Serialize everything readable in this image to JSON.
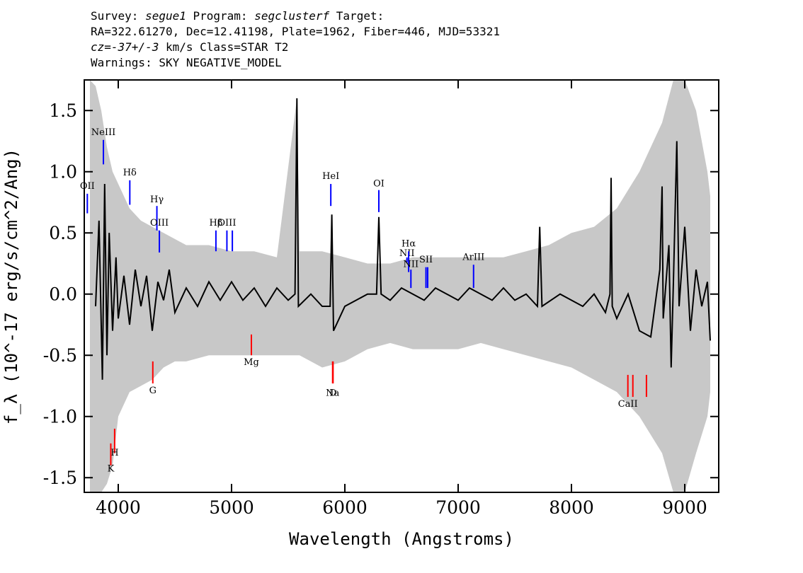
{
  "header": {
    "line1": {
      "survey_label": "Survey: ",
      "survey": "segue1",
      "program_label": " Program: ",
      "program": "segclusterf",
      "target_label": " Target:"
    },
    "line2": "RA=322.61270, Dec=12.41198, Plate=1962, Fiber=446, MJD=53321",
    "line3": {
      "cz": "cz=-37+/-3",
      "rest": " km/s Class=STAR T2"
    },
    "line4": "Warnings: SKY NEGATIVE_MODEL"
  },
  "chart_data": {
    "type": "line",
    "xlabel": "Wavelength (Angstroms)",
    "ylabel": "f_λ (10^-17 erg/s/cm^2/Ang)",
    "xlim": [
      3700,
      9300
    ],
    "ylim": [
      -1.62,
      1.75
    ],
    "x_ticks": [
      4000,
      5000,
      6000,
      7000,
      8000,
      9000
    ],
    "x_tick_labels": [
      "4000",
      "5000",
      "6000",
      "7000",
      "8000",
      "9000"
    ],
    "y_ticks": [
      -1.5,
      -1.0,
      -0.5,
      0.0,
      0.5,
      1.0,
      1.5
    ],
    "y_tick_labels": [
      "-1.5",
      "-1.0",
      "-0.5",
      "0.0",
      "0.5",
      "1.0",
      "1.5"
    ],
    "series": [
      {
        "style": "black-line",
        "points": [
          [
            3800,
            -0.1
          ],
          [
            3830,
            0.6
          ],
          [
            3860,
            -0.7
          ],
          [
            3880,
            0.9
          ],
          [
            3900,
            -0.5
          ],
          [
            3920,
            0.5
          ],
          [
            3950,
            -0.3
          ],
          [
            3980,
            0.3
          ],
          [
            4000,
            -0.2
          ],
          [
            4050,
            0.15
          ],
          [
            4100,
            -0.25
          ],
          [
            4150,
            0.2
          ],
          [
            4200,
            -0.1
          ],
          [
            4250,
            0.15
          ],
          [
            4300,
            -0.3
          ],
          [
            4350,
            0.1
          ],
          [
            4400,
            -0.05
          ],
          [
            4450,
            0.2
          ],
          [
            4500,
            -0.15
          ],
          [
            4600,
            0.05
          ],
          [
            4700,
            -0.1
          ],
          [
            4800,
            0.1
          ],
          [
            4900,
            -0.05
          ],
          [
            5000,
            0.1
          ],
          [
            5100,
            -0.05
          ],
          [
            5200,
            0.05
          ],
          [
            5300,
            -0.1
          ],
          [
            5400,
            0.05
          ],
          [
            5500,
            -0.05
          ],
          [
            5560,
            0.0
          ],
          [
            5577,
            1.6
          ],
          [
            5590,
            -0.1
          ],
          [
            5700,
            0.0
          ],
          [
            5800,
            -0.1
          ],
          [
            5870,
            -0.1
          ],
          [
            5885,
            0.65
          ],
          [
            5900,
            -0.3
          ],
          [
            6000,
            -0.1
          ],
          [
            6100,
            -0.05
          ],
          [
            6200,
            0.0
          ],
          [
            6280,
            0.0
          ],
          [
            6300,
            0.63
          ],
          [
            6320,
            0.0
          ],
          [
            6400,
            -0.05
          ],
          [
            6500,
            0.05
          ],
          [
            6600,
            0.0
          ],
          [
            6700,
            -0.05
          ],
          [
            6800,
            0.05
          ],
          [
            6900,
            0.0
          ],
          [
            7000,
            -0.05
          ],
          [
            7100,
            0.05
          ],
          [
            7200,
            0.0
          ],
          [
            7300,
            -0.05
          ],
          [
            7400,
            0.05
          ],
          [
            7500,
            -0.05
          ],
          [
            7600,
            0.0
          ],
          [
            7700,
            -0.1
          ],
          [
            7720,
            0.55
          ],
          [
            7740,
            -0.1
          ],
          [
            7900,
            0.0
          ],
          [
            8000,
            -0.05
          ],
          [
            8100,
            -0.1
          ],
          [
            8200,
            0.0
          ],
          [
            8300,
            -0.15
          ],
          [
            8340,
            0.0
          ],
          [
            8350,
            0.95
          ],
          [
            8360,
            -0.1
          ],
          [
            8400,
            -0.2
          ],
          [
            8500,
            0.0
          ],
          [
            8600,
            -0.3
          ],
          [
            8700,
            -0.35
          ],
          [
            8780,
            0.2
          ],
          [
            8800,
            0.88
          ],
          [
            8810,
            -0.2
          ],
          [
            8860,
            0.4
          ],
          [
            8880,
            -0.6
          ],
          [
            8900,
            0.1
          ],
          [
            8930,
            1.25
          ],
          [
            8950,
            -0.1
          ],
          [
            9000,
            0.55
          ],
          [
            9050,
            -0.3
          ],
          [
            9100,
            0.2
          ],
          [
            9150,
            -0.1
          ],
          [
            9200,
            0.1
          ],
          [
            9225,
            -0.38
          ]
        ]
      },
      {
        "style": "grey-error-envelope",
        "points": [
          [
            3750,
            1.75,
            -1.62
          ],
          [
            3800,
            1.7,
            -1.62
          ],
          [
            3850,
            1.5,
            -1.62
          ],
          [
            3900,
            1.2,
            -1.55
          ],
          [
            3950,
            1.0,
            -1.4
          ],
          [
            4000,
            0.9,
            -1.0
          ],
          [
            4100,
            0.7,
            -0.8
          ],
          [
            4200,
            0.6,
            -0.75
          ],
          [
            4300,
            0.55,
            -0.7
          ],
          [
            4400,
            0.5,
            -0.6
          ],
          [
            4500,
            0.45,
            -0.55
          ],
          [
            4600,
            0.4,
            -0.55
          ],
          [
            4800,
            0.4,
            -0.5
          ],
          [
            5000,
            0.35,
            -0.5
          ],
          [
            5200,
            0.35,
            -0.5
          ],
          [
            5400,
            0.3,
            -0.5
          ],
          [
            5577,
            1.6,
            -0.5
          ],
          [
            5600,
            0.35,
            -0.5
          ],
          [
            5800,
            0.35,
            -0.6
          ],
          [
            6000,
            0.3,
            -0.55
          ],
          [
            6200,
            0.25,
            -0.45
          ],
          [
            6400,
            0.25,
            -0.4
          ],
          [
            6600,
            0.3,
            -0.45
          ],
          [
            6800,
            0.3,
            -0.45
          ],
          [
            7000,
            0.3,
            -0.45
          ],
          [
            7200,
            0.3,
            -0.4
          ],
          [
            7400,
            0.3,
            -0.45
          ],
          [
            7600,
            0.35,
            -0.5
          ],
          [
            7800,
            0.4,
            -0.55
          ],
          [
            8000,
            0.5,
            -0.6
          ],
          [
            8200,
            0.55,
            -0.7
          ],
          [
            8400,
            0.7,
            -0.8
          ],
          [
            8600,
            1.0,
            -1.0
          ],
          [
            8800,
            1.4,
            -1.3
          ],
          [
            8900,
            1.75,
            -1.62
          ],
          [
            9000,
            1.75,
            -1.62
          ],
          [
            9100,
            1.5,
            -1.3
          ],
          [
            9200,
            1.0,
            -1.0
          ],
          [
            9225,
            0.8,
            -0.8
          ]
        ]
      }
    ],
    "line_markers": [
      {
        "label": "NeIII",
        "x": 3869,
        "y0": 1.06,
        "y1": 1.26,
        "ly": 1.3,
        "color": "#0000ff"
      },
      {
        "label": "OII",
        "x": 3727,
        "y0": 0.66,
        "y1": 0.82,
        "ly": 0.86,
        "color": "#0000ff"
      },
      {
        "label": "Hδ",
        "x": 4102,
        "y0": 0.73,
        "y1": 0.93,
        "ly": 0.97,
        "color": "#0000ff"
      },
      {
        "label": "Hγ",
        "x": 4341,
        "y0": 0.52,
        "y1": 0.72,
        "ly": 0.75,
        "color": "#0000ff"
      },
      {
        "label": "OIII",
        "x": 4363,
        "y0": 0.34,
        "y1": 0.52,
        "ly": 0.56,
        "color": "#0000ff"
      },
      {
        "label": "Hβ",
        "x": 4862,
        "y0": 0.35,
        "y1": 0.52,
        "ly": 0.56,
        "color": "#0000ff"
      },
      {
        "label": "OIII",
        "x": 4959,
        "y0": 0.35,
        "y1": 0.52,
        "ly": 0.56,
        "color": "#0000ff"
      },
      {
        "x": 5007,
        "y0": 0.35,
        "y1": 0.52,
        "color": "#0000ff"
      },
      {
        "label": "HeI",
        "x": 5876,
        "y0": 0.72,
        "y1": 0.9,
        "ly": 0.94,
        "color": "#0000ff"
      },
      {
        "label": "OI",
        "x": 6300,
        "y0": 0.67,
        "y1": 0.85,
        "ly": 0.88,
        "color": "#0000ff"
      },
      {
        "label": "NII",
        "x": 6548,
        "y0": 0.26,
        "y1": 0.3,
        "ly": 0.31,
        "color": "#0000ff"
      },
      {
        "label": "Hα",
        "x": 6563,
        "y0": 0.18,
        "y1": 0.35,
        "ly": 0.39,
        "color": "#0000ff"
      },
      {
        "label": "NII",
        "x": 6583,
        "y0": 0.05,
        "y1": 0.2,
        "ly": 0.22,
        "color": "#0000ff"
      },
      {
        "label": "SII",
        "x": 6716,
        "y0": 0.05,
        "y1": 0.22,
        "ly": 0.26,
        "color": "#0000ff"
      },
      {
        "x": 6731,
        "y0": 0.05,
        "y1": 0.22,
        "color": "#0000ff"
      },
      {
        "label": "ArIII",
        "x": 7136,
        "y0": 0.05,
        "y1": 0.24,
        "ly": 0.28,
        "color": "#0000ff"
      },
      {
        "label": "Mg",
        "x": 5175,
        "y0": -0.5,
        "y1": -0.33,
        "ly": -0.58,
        "color": "#ff0000"
      },
      {
        "label": "G",
        "x": 4305,
        "y0": -0.73,
        "y1": -0.55,
        "ly": -0.81,
        "color": "#ff0000"
      },
      {
        "label": "Na",
        "x": 5892,
        "y0": -0.73,
        "y1": -0.55,
        "ly": -0.83,
        "color": "#ff0000"
      },
      {
        "label": "D",
        "x": 5896,
        "y0": -0.73,
        "y1": -0.55,
        "ly": -0.83,
        "color": "#ff0000"
      },
      {
        "label": "CaII",
        "x": 8498,
        "y0": -0.84,
        "y1": -0.66,
        "ly": -0.92,
        "color": "#ff0000"
      },
      {
        "x": 8542,
        "y0": -0.84,
        "y1": -0.66,
        "color": "#ff0000"
      },
      {
        "x": 8662,
        "y0": -0.84,
        "y1": -0.66,
        "color": "#ff0000"
      },
      {
        "label": "H",
        "x": 3968,
        "y0": -1.3,
        "y1": -1.1,
        "ly": -1.32,
        "color": "#ff0000"
      },
      {
        "label": "K",
        "x": 3934,
        "y0": -1.4,
        "y1": -1.22,
        "ly": -1.45,
        "color": "#ff0000"
      }
    ]
  }
}
